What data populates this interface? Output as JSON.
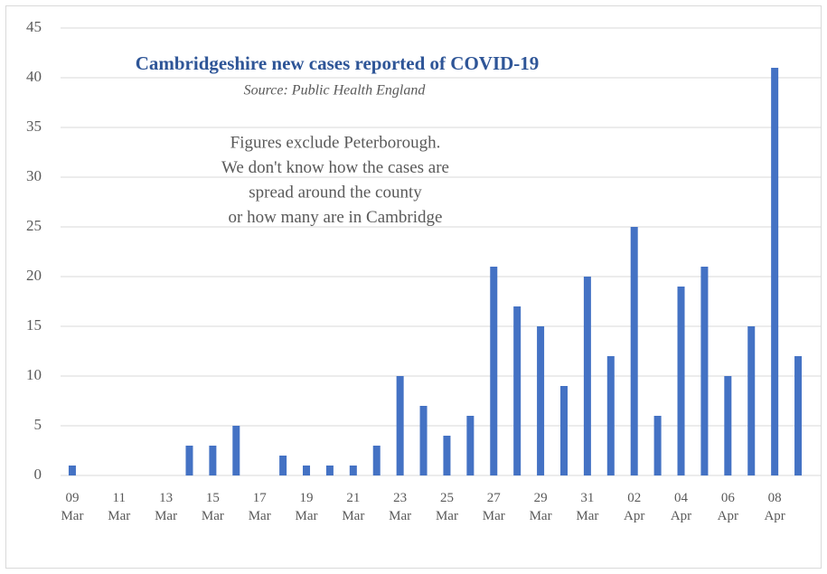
{
  "chart_data": {
    "type": "bar",
    "title": "Cambridgeshire new cases reported of COVID-19",
    "subtitle": "Source: Public Health England",
    "annotation": [
      "Figures exclude Peterborough.",
      "We don't know how the cases are",
      "spread around the county",
      "or how many are in Cambridge"
    ],
    "categories": [
      "09 Mar",
      null,
      "11 Mar",
      null,
      "13 Mar",
      null,
      "15 Mar",
      null,
      "17 Mar",
      null,
      "19 Mar",
      null,
      "21 Mar",
      null,
      "23 Mar",
      null,
      "25 Mar",
      null,
      "27 Mar",
      null,
      "29 Mar",
      null,
      "31 Mar",
      null,
      "02 Apr",
      null,
      "04 Apr",
      null,
      "06 Apr",
      null,
      "08 Apr",
      null
    ],
    "values": [
      1,
      0,
      0,
      0,
      0,
      3,
      3,
      5,
      0,
      2,
      1,
      1,
      1,
      3,
      10,
      7,
      4,
      6,
      21,
      17,
      15,
      9,
      20,
      12,
      25,
      6,
      19,
      21,
      10,
      15,
      41,
      12
    ],
    "color": "#4472c4",
    "ylim": [
      0,
      45
    ],
    "yticks": [
      0,
      5,
      10,
      15,
      20,
      25,
      30,
      35,
      40,
      45
    ],
    "grid": true
  }
}
